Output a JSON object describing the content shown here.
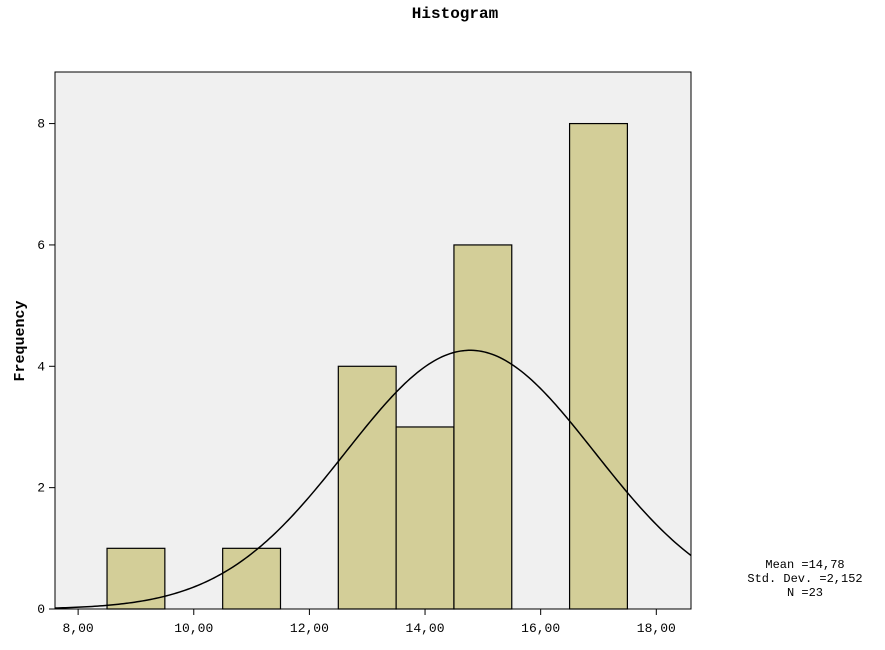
{
  "chart_data": {
    "type": "bar",
    "title": "Histogram",
    "xlabel": "",
    "ylabel": "Frequency",
    "xlim": [
      7.6,
      18.6
    ],
    "ylim": [
      0,
      8.85
    ],
    "x_ticks": [
      8,
      10,
      12,
      14,
      16,
      18
    ],
    "x_tick_labels": [
      "8,00",
      "10,00",
      "12,00",
      "14,00",
      "16,00",
      "18,00"
    ],
    "y_ticks": [
      0,
      2,
      4,
      6,
      8
    ],
    "y_tick_labels": [
      "0",
      "2",
      "4",
      "6",
      "8"
    ],
    "bins": [
      {
        "start": 8.5,
        "end": 9.5,
        "count": 1
      },
      {
        "start": 9.5,
        "end": 10.5,
        "count": 0
      },
      {
        "start": 10.5,
        "end": 11.5,
        "count": 1
      },
      {
        "start": 11.5,
        "end": 12.5,
        "count": 0
      },
      {
        "start": 12.5,
        "end": 13.5,
        "count": 4
      },
      {
        "start": 13.5,
        "end": 14.5,
        "count": 3
      },
      {
        "start": 14.5,
        "end": 15.5,
        "count": 6
      },
      {
        "start": 15.5,
        "end": 16.5,
        "count": 0
      },
      {
        "start": 16.5,
        "end": 17.5,
        "count": 8
      }
    ],
    "normal_curve": {
      "mean": 14.78,
      "std": 2.152,
      "n": 23,
      "bin_width": 1
    },
    "stats_text": [
      "Mean =14,78",
      "Std. Dev. =2,152",
      "N =23"
    ],
    "colors": {
      "bar_fill": "#d3ce98",
      "bar_stroke": "#000000",
      "plot_bg": "#f0f0f0",
      "curve": "#000000"
    },
    "grid": false
  }
}
